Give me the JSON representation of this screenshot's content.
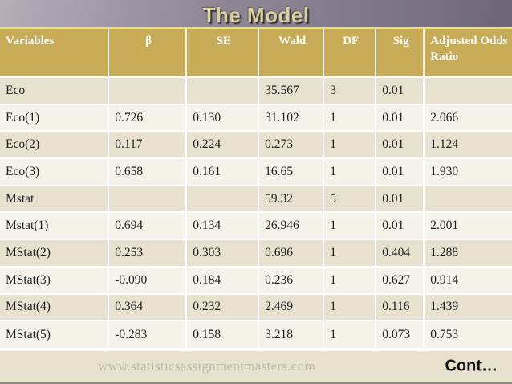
{
  "slide": {
    "title": "The Model"
  },
  "table": {
    "columns": [
      {
        "label": "Variables",
        "align": "left",
        "width": 21.2
      },
      {
        "label": "β",
        "align": "center",
        "width": 15.2
      },
      {
        "label": "SE",
        "align": "center",
        "width": 14.1
      },
      {
        "label": "Wald",
        "align": "center",
        "width": 12.7
      },
      {
        "label": "DF",
        "align": "center",
        "width": 10.2
      },
      {
        "label": "Sig",
        "align": "center",
        "width": 9.4
      },
      {
        "label": "Adjusted Odds Ratio",
        "align": "left",
        "width": 17.2
      }
    ],
    "rows": [
      [
        "Eco",
        "",
        "",
        "35.567",
        "3",
        "0.01",
        ""
      ],
      [
        "Eco(1)",
        "0.726",
        "0.130",
        "31.102",
        "1",
        "0.01",
        "2.066"
      ],
      [
        "Eco(2)",
        "0.117",
        "0.224",
        "0.273",
        "1",
        "0.01",
        "1.124"
      ],
      [
        "Eco(3)",
        "0.658",
        "0.161",
        "16.65",
        "1",
        "0.01",
        "1.930"
      ],
      [
        "Mstat",
        "",
        "",
        "59.32",
        "5",
        "0.01",
        ""
      ],
      [
        "Mstat(1)",
        "0.694",
        "0.134",
        "26.946",
        "1",
        "0.01",
        "2.001"
      ],
      [
        "MStat(2)",
        "0.253",
        "0.303",
        "0.696",
        "1",
        "0.404",
        "1.288"
      ],
      [
        "MStat(3)",
        "-0.090",
        "0.184",
        "0.236",
        "1",
        "0.627",
        "0.914"
      ],
      [
        "MStat(4)",
        "0.364",
        "0.232",
        "2.469",
        "1",
        "0.116",
        "1.439"
      ],
      [
        "MStat(5)",
        "-0.283",
        "0.158",
        "3.218",
        "1",
        "0.073",
        "0.753"
      ]
    ]
  },
  "footer": {
    "url": "www.statisticsassignmentmasters.com",
    "cont_label": "Cont…"
  },
  "colors": {
    "header_bg": "#c8ab57",
    "row_dark": "#e9e1cf",
    "row_light": "#f5f2ea",
    "title_text": "#d9d09c",
    "footer_bg": "#e8e1cd",
    "url_text": "#bcb8ab"
  }
}
